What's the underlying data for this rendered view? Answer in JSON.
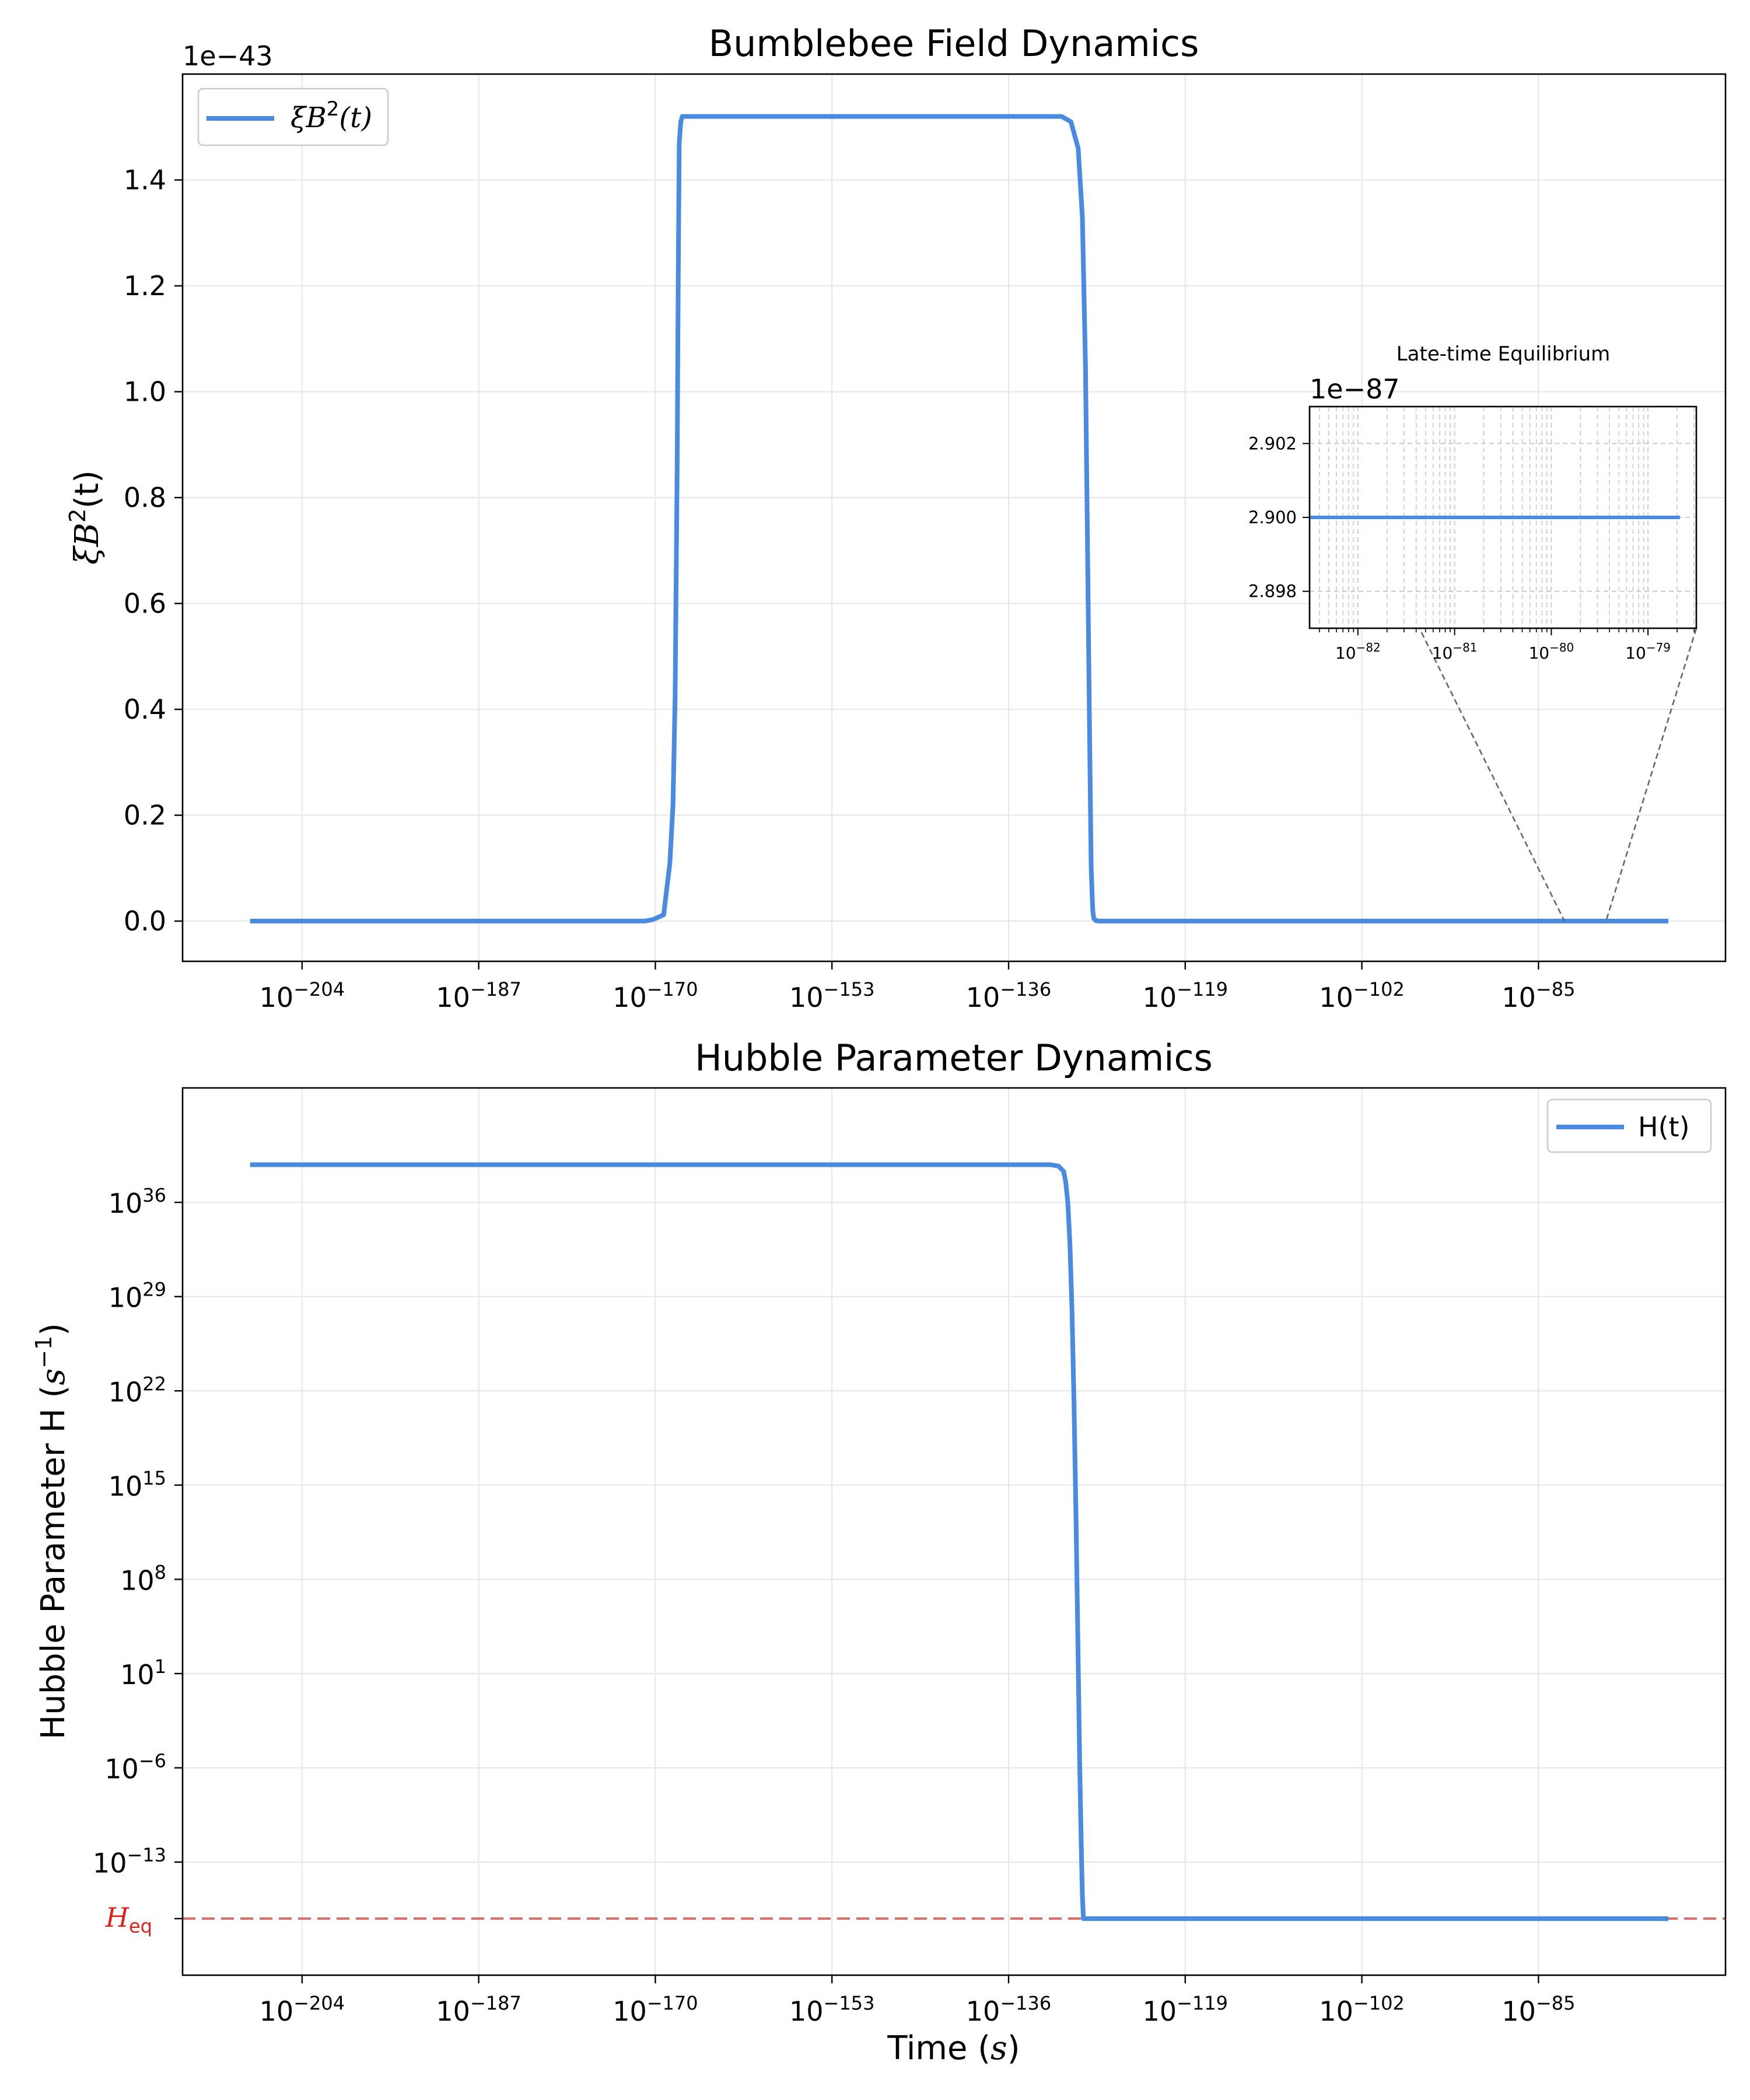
{
  "colors": {
    "line": "#4a8ae0",
    "grid": "#e6e6e6",
    "heq_line": "#d9534f",
    "heq_label": "#e0201b",
    "inset_link": "#666666"
  },
  "chart_data": [
    {
      "type": "line",
      "title": "Bumblebee Field Dynamics",
      "ylabel_base": "ξB",
      "ylabel_sup": "2",
      "ylabel_tail": "(t)",
      "y_offset_label": "1e−43",
      "legend": {
        "base": "ξB",
        "sup": "2",
        "tail": "(t)",
        "placement": "upper left"
      },
      "xscale": "log",
      "xlim": [
        -215.5,
        -67
      ],
      "ylim": [
        -0.076,
        1.6
      ],
      "x_ticks": [
        -204,
        -187,
        -170,
        -153,
        -136,
        -119,
        -102,
        -85
      ],
      "y_ticks": [
        "0.0",
        "0.2",
        "0.4",
        "0.6",
        "0.8",
        "1.0",
        "1.2",
        "1.4"
      ],
      "grid": true,
      "series": [
        {
          "name": "ξB²(t)",
          "x": [
            -209,
            -185,
            -171,
            -170.2,
            -169.2,
            -168.6,
            -168.3,
            -168.1,
            -167.9,
            -167.8,
            -167.7,
            -167.55,
            -167.4,
            -130.9,
            -130,
            -129.3,
            -128.9,
            -128.6,
            -128.4,
            -128.2,
            -128.05,
            -127.9,
            -127.8,
            -127.6,
            -127.3,
            -124,
            -100,
            -72.5
          ],
          "y": [
            0,
            0,
            0,
            0.003,
            0.012,
            0.11,
            0.22,
            0.42,
            0.85,
            1.2,
            1.47,
            1.51,
            1.52,
            1.52,
            1.51,
            1.46,
            1.33,
            1.05,
            0.7,
            0.35,
            0.1,
            0.02,
            0.005,
            0.001,
            0,
            0,
            0,
            0
          ]
        }
      ],
      "inset": {
        "title": "Late-time Equilibrium",
        "y_offset_label": "1e−87",
        "xscale": "log",
        "xlim": [
          -82.5,
          -78.5
        ],
        "ylim": [
          2.897,
          2.903
        ],
        "x_ticks": [
          -82,
          -81,
          -80,
          -79
        ],
        "y_ticks": [
          "2.898",
          "2.900",
          "2.902"
        ],
        "grid": "dashed",
        "series_x": [
          -82.5,
          -78.67
        ],
        "series_y": [
          2.9,
          2.9
        ]
      }
    },
    {
      "type": "line",
      "title": "Hubble Parameter Dynamics",
      "ylabel_base": "Hubble Parameter H (",
      "ylabel_unit_base": "s",
      "ylabel_unit_sup": "−1",
      "ylabel_tail": ")",
      "xlabel_base": "Time (",
      "xlabel_unit": "s",
      "xlabel_tail": ")",
      "legend": {
        "label": "H(t)",
        "placement": "upper right"
      },
      "xscale": "log",
      "yscale": "log",
      "xlim": [
        -215.5,
        -67
      ],
      "ylim": [
        -21.4,
        44.5
      ],
      "x_ticks": [
        -204,
        -187,
        -170,
        -153,
        -136,
        -119,
        -102,
        -85
      ],
      "y_ticks": [
        -13,
        -6,
        1,
        8,
        15,
        22,
        29,
        36
      ],
      "grid": true,
      "heq": {
        "value": -17.2,
        "label_base": "H",
        "label_sub": "eq"
      },
      "series": [
        {
          "name": "H(t)",
          "x": [
            -209,
            -160,
            -132,
            -131.2,
            -130.7,
            -130.5,
            -130.3,
            -130.1,
            -129.9,
            -129.7,
            -129.5,
            -129.3,
            -129.15,
            -129.0,
            -128.9,
            -128.8,
            -128.7,
            -72.5
          ],
          "y": [
            38.8,
            38.8,
            38.8,
            38.7,
            38.3,
            37.5,
            36.0,
            33.0,
            28.0,
            21.0,
            12.0,
            2.0,
            -6.0,
            -12.0,
            -15.5,
            -17.2,
            -17.2,
            -17.2
          ]
        }
      ]
    }
  ]
}
